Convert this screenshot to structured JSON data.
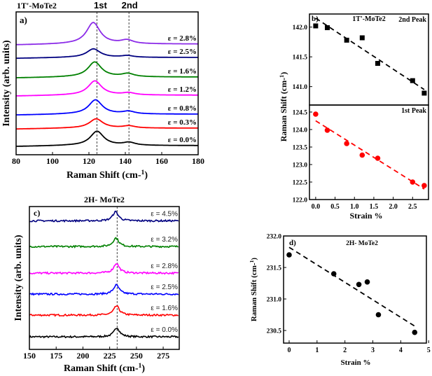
{
  "chart_data": [
    {
      "id": "a",
      "type": "line",
      "panel_label": "a)",
      "title": "1T'-MoTe2",
      "xlabel": "Raman Shift (cm-1)",
      "ylabel": "Intensity (arb. units)",
      "xlim": [
        80,
        180
      ],
      "ylim": [
        0,
        10
      ],
      "xticks": [
        80,
        100,
        120,
        140,
        160,
        180
      ],
      "reference_lines": [
        {
          "label": "1st",
          "x": 124.4
        },
        {
          "label": "2nd",
          "x": 142.0
        }
      ],
      "series": [
        {
          "name": "ε = 0.0%",
          "color": "#000000",
          "offset": 0.64,
          "peak1": 124.44,
          "amp1": 1.0,
          "peak2": 142.02,
          "amp2": 0.2
        },
        {
          "name": "ε = 0.3%",
          "color": "#ff0000",
          "offset": 1.86,
          "peak1": 123.98,
          "amp1": 0.65,
          "peak2": 141.99,
          "amp2": 0.15
        },
        {
          "name": "ε = 0.8%",
          "color": "#0000ff",
          "offset": 2.84,
          "peak1": 123.6,
          "amp1": 1.0,
          "peak2": 141.78,
          "amp2": 0.18
        },
        {
          "name": "ε = 1.2%",
          "color": "#ff00ff",
          "offset": 4.17,
          "peak1": 123.27,
          "amp1": 1.0,
          "peak2": 141.82,
          "amp2": 0.15
        },
        {
          "name": "ε = 1.6%",
          "color": "#008000",
          "offset": 5.44,
          "peak1": 123.18,
          "amp1": 1.05,
          "peak2": 141.39,
          "amp2": 0.22
        },
        {
          "name": "ε = 2.5%",
          "color": "#000080",
          "offset": 6.81,
          "peak1": 122.5,
          "amp1": 0.6,
          "peak2": 141.1,
          "amp2": 0.12
        },
        {
          "name": "ε = 2.8%",
          "color": "#8b2be8",
          "offset": 7.75,
          "peak1": 122.4,
          "amp1": 1.5,
          "peak2": 140.89,
          "amp2": 0.25
        }
      ]
    },
    {
      "id": "b",
      "type": "scatter",
      "panel_label": "b)",
      "title": "1T'-MoTe2",
      "xlabel": "Strain %",
      "ylabel": "Raman Shift (cm-1)",
      "xlim": [
        -0.16,
        2.91
      ],
      "xticks": [
        0.0,
        0.5,
        1.0,
        1.5,
        2.0,
        2.5
      ],
      "subplots": [
        {
          "name": "2nd Peak",
          "color": "#000000",
          "marker": "square",
          "ylim": [
            140.69,
            142.22
          ],
          "yticks": [
            141.0,
            141.5,
            142.0
          ],
          "x": [
            0,
            0.3,
            0.8,
            1.2,
            1.6,
            2.5,
            2.8
          ],
          "y": [
            142.02,
            141.99,
            141.78,
            141.82,
            141.39,
            141.1,
            140.89
          ],
          "fit": {
            "x": [
              0,
              2.8
            ],
            "y": [
              142.15,
              140.95
            ]
          }
        },
        {
          "name": "1st Peak",
          "color": "#ff0000",
          "marker": "circle",
          "ylim": [
            122.0,
            124.7
          ],
          "yticks": [
            122.0,
            122.5,
            123.0,
            123.5,
            124.0,
            124.5
          ],
          "x": [
            0,
            0.3,
            0.8,
            1.2,
            1.6,
            2.5,
            2.8
          ],
          "y": [
            124.44,
            123.98,
            123.6,
            123.27,
            123.18,
            122.5,
            122.4
          ],
          "fit": {
            "x": [
              0,
              2.8
            ],
            "y": [
              124.25,
              122.3
            ]
          }
        }
      ]
    },
    {
      "id": "c",
      "type": "line",
      "panel_label": "c)",
      "title": "2H- MoTe2",
      "xlabel": "Raman Shift (cm-1)",
      "ylabel": "Intensity (arb. units)",
      "xlim": [
        150,
        290
      ],
      "ylim": [
        0,
        10
      ],
      "xticks": [
        150,
        175,
        200,
        225,
        250,
        275
      ],
      "reference_lines": [
        {
          "label": "",
          "x": 232
        }
      ],
      "series": [
        {
          "name": "ε = 0.0%",
          "color": "#000000",
          "offset": 0.88,
          "peak1": 231.7,
          "amp1": 0.64
        },
        {
          "name": "ε = 1.6%",
          "color": "#ff0000",
          "offset": 2.4,
          "peak1": 231.4,
          "amp1": 0.64
        },
        {
          "name": "ε = 2.5%",
          "color": "#0000ff",
          "offset": 3.87,
          "peak1": 231.2,
          "amp1": 0.64
        },
        {
          "name": "ε = 2.8%",
          "color": "#ff00ff",
          "offset": 5.34,
          "peak1": 231.3,
          "amp1": 0.68
        },
        {
          "name": "ε = 3.2%",
          "color": "#008000",
          "offset": 7.2,
          "peak1": 230.8,
          "amp1": 0.6
        },
        {
          "name": "ε = 4.5%",
          "color": "#000080",
          "offset": 9.0,
          "peak1": 230.5,
          "amp1": 0.64
        }
      ]
    },
    {
      "id": "d",
      "type": "scatter",
      "panel_label": "d)",
      "title": "2H- MoTe2",
      "xlabel": "Strain %",
      "ylabel": "Raman Shift (cm-1)",
      "xlim": [
        -0.2,
        4.92
      ],
      "ylim": [
        230.3,
        232.0
      ],
      "xticks": [
        0,
        1,
        2,
        3,
        4,
        5
      ],
      "yticks": [
        230.5,
        231.0,
        231.5,
        232.0
      ],
      "color": "#000000",
      "marker": "circle",
      "x": [
        0,
        1.6,
        2.5,
        2.8,
        3.2,
        4.5
      ],
      "y": [
        231.7,
        231.4,
        231.23,
        231.27,
        230.75,
        230.47
      ],
      "fit": {
        "x": [
          0,
          4.5
        ],
        "y": [
          231.82,
          230.57
        ]
      }
    }
  ]
}
